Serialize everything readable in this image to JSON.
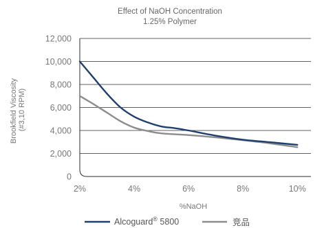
{
  "chart_data": {
    "type": "line",
    "title": "Effect of NaOH Concentration",
    "subtitle": "1.25% Polymer",
    "xlabel": "%NaOH",
    "ylabel_line1": "Brookfield Viscosity",
    "ylabel_line2": "(#3,10 RPM)",
    "x_ticks": [
      {
        "value": 2,
        "label": "2%"
      },
      {
        "value": 4,
        "label": "4%"
      },
      {
        "value": 6,
        "label": "6%"
      },
      {
        "value": 8,
        "label": "8%"
      },
      {
        "value": 10,
        "label": "10%"
      }
    ],
    "xlim": [
      2,
      10.5
    ],
    "y_ticks": [
      {
        "value": 0,
        "label": "0"
      },
      {
        "value": 2000,
        "label": "2,000"
      },
      {
        "value": 4000,
        "label": "4,000"
      },
      {
        "value": 6000,
        "label": "6,000"
      },
      {
        "value": 8000,
        "label": "8,000"
      },
      {
        "value": 10000,
        "label": "10,000"
      },
      {
        "value": 12000,
        "label": "12,000"
      }
    ],
    "ylim": [
      0,
      12000
    ],
    "grid": "horizontal",
    "legend_position": "bottom",
    "series": [
      {
        "name": "Alcoguard",
        "name_sup": "®",
        "name_suffix": " 5800",
        "color": "#1f3f6e",
        "points": [
          {
            "x": 2,
            "y": 10000
          },
          {
            "x": 2.5,
            "y": 8600
          },
          {
            "x": 3,
            "y": 7200
          },
          {
            "x": 3.5,
            "y": 6000
          },
          {
            "x": 4,
            "y": 5200
          },
          {
            "x": 4.5,
            "y": 4700
          },
          {
            "x": 5,
            "y": 4350
          },
          {
            "x": 5.5,
            "y": 4200
          },
          {
            "x": 6,
            "y": 4000
          },
          {
            "x": 7,
            "y": 3550
          },
          {
            "x": 8,
            "y": 3200
          },
          {
            "x": 9,
            "y": 2980
          },
          {
            "x": 10,
            "y": 2750
          }
        ]
      },
      {
        "name": "竞品",
        "color": "#8c8c8c",
        "points": [
          {
            "x": 2,
            "y": 7000
          },
          {
            "x": 2.5,
            "y": 6300
          },
          {
            "x": 3,
            "y": 5550
          },
          {
            "x": 3.5,
            "y": 4800
          },
          {
            "x": 4,
            "y": 4250
          },
          {
            "x": 4.5,
            "y": 3950
          },
          {
            "x": 5,
            "y": 3750
          },
          {
            "x": 6,
            "y": 3600
          },
          {
            "x": 7,
            "y": 3400
          },
          {
            "x": 8,
            "y": 3150
          },
          {
            "x": 9,
            "y": 2880
          },
          {
            "x": 10,
            "y": 2550
          }
        ]
      }
    ]
  }
}
